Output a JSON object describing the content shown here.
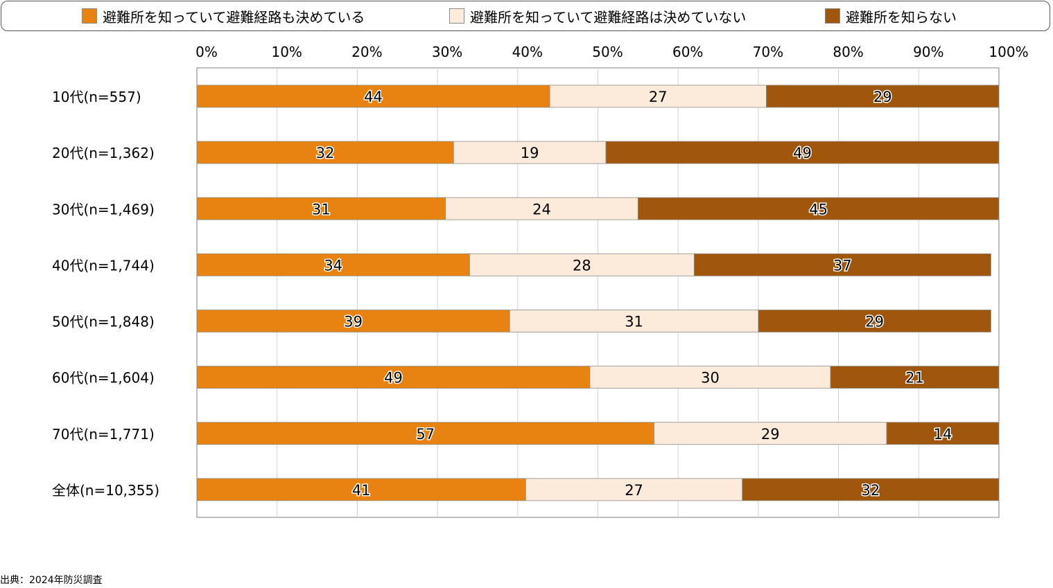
{
  "legend": [
    {
      "label": "避難所を知っていて避難経路も決めている",
      "color": "#E88312"
    },
    {
      "label": "避難所を知っていて避難経路は決めていない",
      "color": "#FCEBDB"
    },
    {
      "label": "避難所を知らない",
      "color": "#A0570B"
    }
  ],
  "source": "出典：2024年防災調査",
  "chart_data": {
    "type": "bar",
    "orientation": "horizontal",
    "stacked": true,
    "xlim": [
      0,
      100
    ],
    "x_ticks": [
      "0%",
      "10%",
      "20%",
      "30%",
      "40%",
      "50%",
      "60%",
      "70%",
      "80%",
      "90%",
      "100%"
    ],
    "grid": true,
    "categories": [
      "10代(n=557)",
      "20代(n=1,362)",
      "30代(n=1,469)",
      "40代(n=1,744)",
      "50代(n=1,848)",
      "60代(n=1,604)",
      "70代(n=1,771)",
      "全体(n=10,355)"
    ],
    "series": [
      {
        "name": "避難所を知っていて避難経路も決めている",
        "color": "#E88312",
        "values": [
          44,
          32,
          31,
          34,
          39,
          49,
          57,
          41
        ]
      },
      {
        "name": "避難所を知っていて避難経路は決めていない",
        "color": "#FCEBDB",
        "values": [
          27,
          19,
          24,
          28,
          31,
          30,
          29,
          27
        ]
      },
      {
        "name": "避難所を知らない",
        "color": "#A0570B",
        "values": [
          29,
          49,
          45,
          37,
          29,
          21,
          14,
          32
        ]
      }
    ]
  }
}
